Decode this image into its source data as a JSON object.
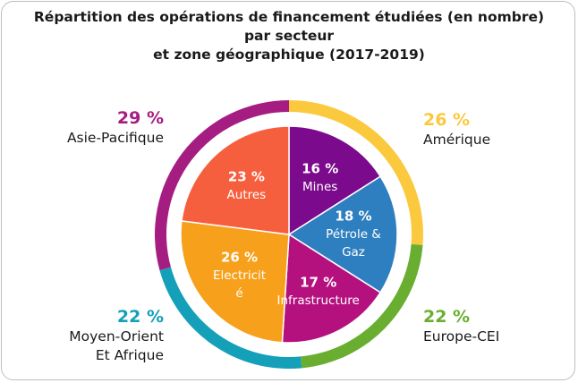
{
  "title_lines": [
    "Répartition des opérations de financement étudiées (en nombre)",
    "par secteur",
    "et zone géographique (2017-2019)"
  ],
  "chart_data": [
    {
      "type": "pie",
      "name": "secteur",
      "categories": [
        "Mines",
        "Pétrole & Gaz",
        "Infrastructure",
        "Electricité",
        "Autres"
      ],
      "values": [
        16,
        18,
        17,
        26,
        23
      ],
      "labels": [
        "16 %",
        "18 %",
        "17 %",
        "26 %",
        "23 %"
      ],
      "display_names": [
        [
          "Mines"
        ],
        [
          "Pétrole &",
          "Gaz"
        ],
        [
          "Infrastructure"
        ],
        [
          "Electricit",
          "é"
        ],
        [
          "Autres"
        ]
      ],
      "colors": [
        "#7b0a8c",
        "#2e7fc0",
        "#b5117e",
        "#f7a01c",
        "#f65f3d"
      ]
    },
    {
      "type": "pie",
      "name": "zone géographique",
      "categories": [
        "Amérique",
        "Europe-CEI",
        "Moyen-Orient Et Afrique",
        "Asie-Pacifique"
      ],
      "values": [
        26,
        22,
        22,
        29
      ],
      "labels": [
        "26 %",
        "22 %",
        "22 %",
        "29 %"
      ],
      "colors": [
        "#fbc93d",
        "#6aae31",
        "#14a0b8",
        "#a61d82"
      ]
    }
  ],
  "ring_labels": {
    "amerique": {
      "pct": "26 %",
      "name": "Amérique",
      "color": "#fbc93d"
    },
    "europe": {
      "pct": "22 %",
      "name": "Europe-CEI",
      "color": "#6aae31"
    },
    "moyen_orient": {
      "pct": "22 %",
      "name_line1": "Moyen-Orient",
      "name_line2": "Et Afrique",
      "color": "#14a0b8"
    },
    "asie": {
      "pct": "29 %",
      "name": "Asie-Pacifique",
      "color": "#a61d82"
    }
  }
}
